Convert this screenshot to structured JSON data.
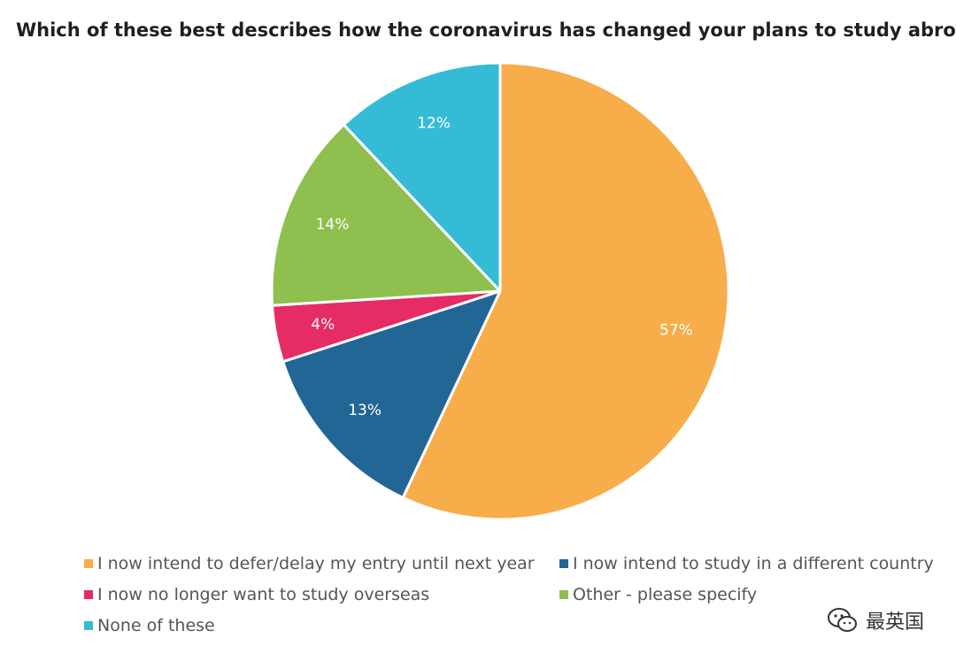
{
  "chart_data": {
    "type": "pie",
    "title": "Which of these best describes how the coronavirus has changed your plans to study abroad?",
    "slices": [
      {
        "label": "I now intend to defer/delay my entry until next year",
        "value": 57,
        "value_label": "57%",
        "color": "#F7AD4A"
      },
      {
        "label": "I now intend to study in a different country",
        "value": 13,
        "value_label": "13%",
        "color": "#226695"
      },
      {
        "label": "I now no longer want to study overseas",
        "value": 4,
        "value_label": "4%",
        "color": "#E52C64"
      },
      {
        "label": "Other - please specify",
        "value": 14,
        "value_label": "14%",
        "color": "#8FBF4E"
      },
      {
        "label": "None of these",
        "value": 12,
        "value_label": "12%",
        "color": "#35BBD5"
      }
    ],
    "legend_position": "bottom"
  },
  "watermark": {
    "text": "最英国"
  }
}
